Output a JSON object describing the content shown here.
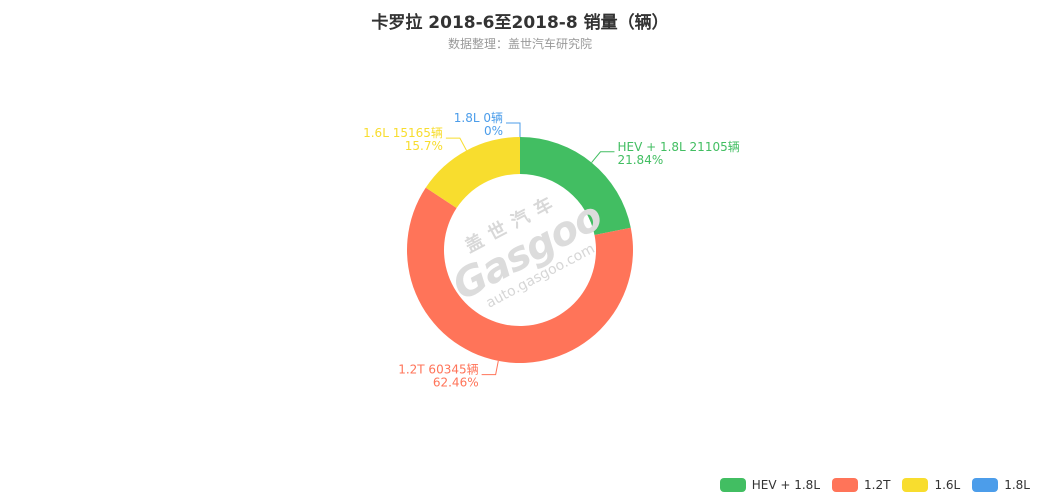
{
  "header": {
    "title": "卡罗拉 2018-6至2018-8 销量（辆）",
    "subtitle": "数据整理：盖世汽车研究院"
  },
  "watermark": {
    "cn": "盖世汽车",
    "brand": "Gasgoo",
    "url": "auto.gasgoo.com"
  },
  "chart_data": {
    "type": "pie",
    "title": "卡罗拉 2018-6至2018-8 销量（辆）",
    "subtitle": "数据整理：盖世汽车研究院",
    "unit": "辆",
    "legend_position": "bottom-right",
    "slices": [
      {
        "name": "HEV + 1.8L",
        "value": 21105,
        "percent": "21.84%",
        "label": "HEV + 1.8L 21105辆",
        "color": "#42BE62"
      },
      {
        "name": "1.2T",
        "value": 60345,
        "percent": "62.46%",
        "label": "1.2T 60345辆",
        "color": "#FF7459"
      },
      {
        "name": "1.6L",
        "value": 15165,
        "percent": "15.7%",
        "label": "1.6L 15165辆",
        "color": "#F8DD2E"
      },
      {
        "name": "1.8L",
        "value": 0,
        "percent": "0%",
        "label": "1.8L 0辆",
        "color": "#4C9DEA"
      }
    ]
  }
}
